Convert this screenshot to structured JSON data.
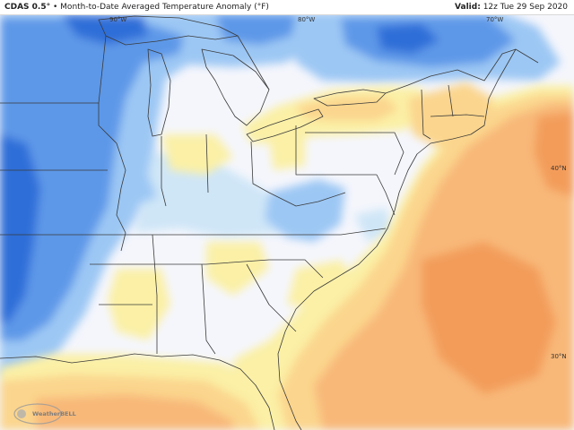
{
  "header": {
    "model": "CDAS 0.5°",
    "separator": "•",
    "title": "Month-to-Date Averaged Temperature Anomaly (°F)",
    "valid_label": "Valid:",
    "valid_time": "12z Tue 29 Sep 2020"
  },
  "longitude_labels": [
    "90°W",
    "80°W",
    "70°W"
  ],
  "latitude_labels": [
    "40°N",
    "30°N"
  ],
  "branding": {
    "logo_text": "WeatherBELL"
  },
  "colors": {
    "cold_strong": "#2f6ed8",
    "cold": "#5d98e8",
    "cool": "#9cc7f4",
    "cool_light": "#cfe6f7",
    "neutral": "#f5f6fc",
    "warm_light": "#fbf0a6",
    "warm": "#fbd58d",
    "warm_mid": "#f8b878",
    "warm_strong": "#f39c5a",
    "boundary": "#3a3a3a"
  }
}
